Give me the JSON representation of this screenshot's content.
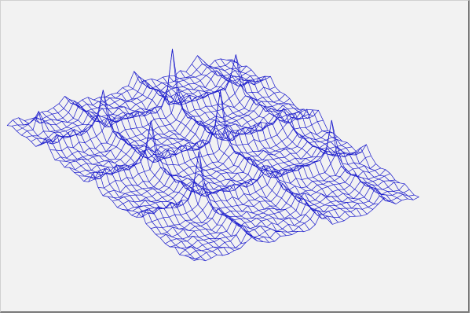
{
  "chart_data": {
    "type": "surface-wireframe",
    "title": "",
    "xlabel": "",
    "ylabel": "",
    "zlabel": "",
    "grid": false,
    "legend": "none",
    "mesh": {
      "rows": 40,
      "cols": 40,
      "line_color": "#1a1acc"
    },
    "surface": {
      "base_level": 0,
      "noise_amplitude": 0.35,
      "ridges": [
        {
          "axis": "row",
          "index": 8,
          "height": 1.6
        },
        {
          "axis": "row",
          "index": 18,
          "height": 1.9
        },
        {
          "axis": "row",
          "index": 28,
          "height": 1.4
        },
        {
          "axis": "col",
          "index": 10,
          "height": 1.5
        },
        {
          "axis": "col",
          "index": 22,
          "height": 1.7
        },
        {
          "axis": "col",
          "index": 33,
          "height": 1.3
        }
      ],
      "peaks": [
        {
          "row": 8,
          "col": 22,
          "height": 5.5
        },
        {
          "row": 18,
          "col": 22,
          "height": 4.8
        },
        {
          "row": 18,
          "col": 10,
          "height": 3.2
        },
        {
          "row": 28,
          "col": 10,
          "height": 4.2
        },
        {
          "row": 28,
          "col": 33,
          "height": 4.0
        },
        {
          "row": 8,
          "col": 10,
          "height": 3.0
        },
        {
          "row": 8,
          "col": 33,
          "height": 2.6
        },
        {
          "row": 3,
          "col": 3,
          "height": 2.4
        }
      ]
    }
  }
}
